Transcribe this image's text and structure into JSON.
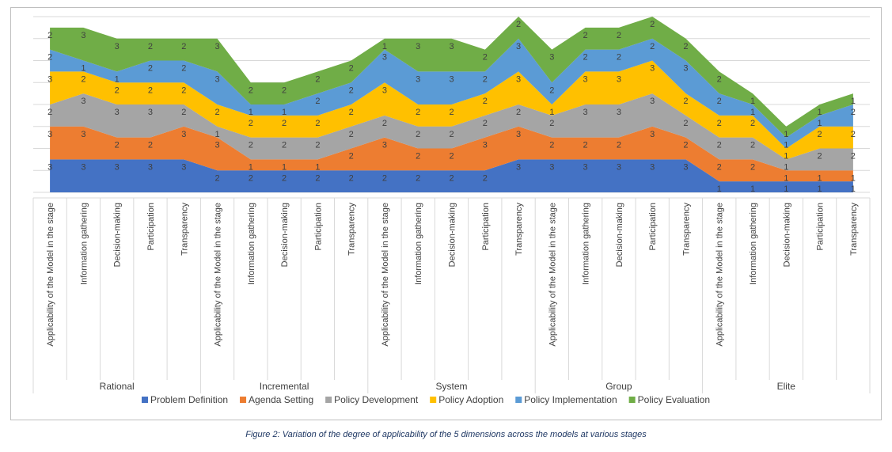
{
  "chart_data": {
    "type": "area",
    "stacked": true,
    "title": "",
    "ylim": [
      0,
      16
    ],
    "grid": true,
    "legend_position": "bottom",
    "groups": [
      "Rational",
      "Incremental",
      "System",
      "Group",
      "Elite"
    ],
    "subcategories": [
      "Applicability of the Model in the stage",
      "Information gathering",
      "Decision-making",
      "Participation",
      "Transparency"
    ],
    "series": [
      {
        "name": "Problem Definition",
        "color": "#4472c4",
        "values": [
          3,
          3,
          3,
          3,
          3,
          2,
          2,
          2,
          2,
          2,
          2,
          2,
          2,
          2,
          3,
          3,
          3,
          3,
          3,
          3,
          1,
          1,
          1,
          1,
          1
        ]
      },
      {
        "name": "Agenda Setting",
        "color": "#ed7d31",
        "values": [
          3,
          3,
          2,
          2,
          3,
          3,
          1,
          1,
          1,
          2,
          3,
          2,
          2,
          3,
          3,
          2,
          2,
          2,
          3,
          2,
          2,
          2,
          1,
          1,
          1
        ]
      },
      {
        "name": "Policy Development",
        "color": "#a5a5a5",
        "values": [
          2,
          3,
          3,
          3,
          2,
          1,
          2,
          2,
          2,
          2,
          2,
          2,
          2,
          2,
          2,
          2,
          3,
          3,
          3,
          2,
          2,
          2,
          1,
          2,
          2
        ]
      },
      {
        "name": "Policy Adoption",
        "color": "#ffc000",
        "values": [
          3,
          2,
          2,
          2,
          2,
          2,
          2,
          2,
          2,
          2,
          3,
          2,
          2,
          2,
          3,
          1,
          3,
          3,
          3,
          2,
          2,
          2,
          1,
          2,
          2
        ]
      },
      {
        "name": "Policy Implementation",
        "color": "#5b9bd5",
        "values": [
          2,
          1,
          1,
          2,
          2,
          3,
          1,
          1,
          2,
          2,
          3,
          3,
          3,
          2,
          3,
          2,
          2,
          2,
          2,
          3,
          2,
          1,
          1,
          1,
          2
        ]
      },
      {
        "name": "Policy Evaluation",
        "color": "#70ad47",
        "values": [
          2,
          3,
          3,
          2,
          2,
          3,
          2,
          2,
          2,
          2,
          1,
          3,
          3,
          2,
          2,
          3,
          2,
          2,
          2,
          2,
          2,
          1,
          1,
          1,
          1
        ]
      }
    ]
  },
  "caption": "Figure 2: Variation of the degree of applicability of the 5 dimensions across the models at various stages"
}
